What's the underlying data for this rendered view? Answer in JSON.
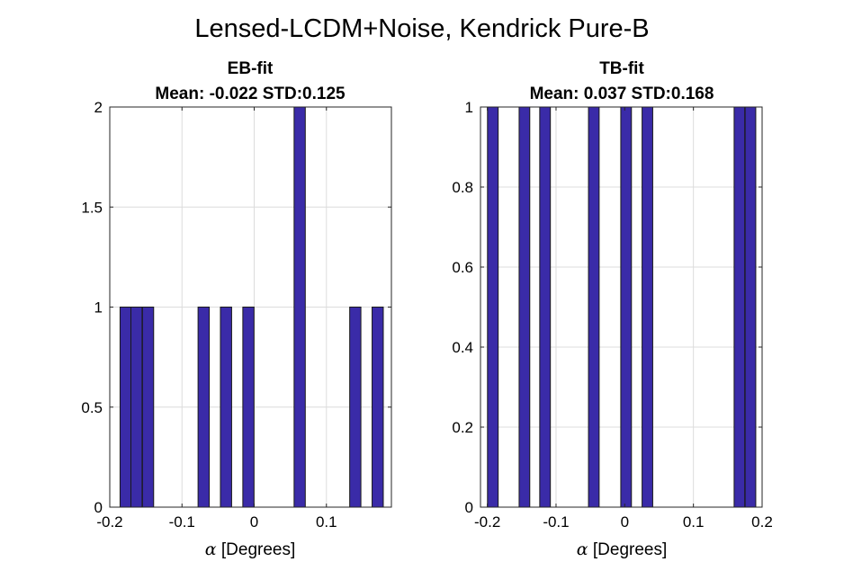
{
  "figure": {
    "title": "Lensed-LCDM+Noise, Kendrick Pure-B"
  },
  "chart_data": [
    {
      "type": "bar",
      "title": "EB-fit",
      "subtitle": "Mean: -0.022 STD:0.125",
      "xlabel_symbol": "α",
      "xlabel_text": " [Degrees]",
      "xlim": [
        -0.2,
        0.19
      ],
      "ylim": [
        0,
        2
      ],
      "grid": true,
      "bin_width": 0.0155,
      "xticks": [
        -0.2,
        -0.1,
        0,
        0.1
      ],
      "xtick_labels": [
        "-0.2",
        "-0.1",
        "0",
        "0.1"
      ],
      "yticks": [
        0,
        0.5,
        1,
        1.5,
        2
      ],
      "ytick_labels": [
        "0",
        "0.5",
        "1",
        "1.5",
        "2"
      ],
      "bins": [
        {
          "center": -0.178,
          "count": 1
        },
        {
          "center": -0.163,
          "count": 1
        },
        {
          "center": -0.147,
          "count": 1
        },
        {
          "center": -0.07,
          "count": 1
        },
        {
          "center": -0.039,
          "count": 1
        },
        {
          "center": -0.008,
          "count": 1
        },
        {
          "center": 0.063,
          "count": 2
        },
        {
          "center": 0.14,
          "count": 1
        },
        {
          "center": 0.171,
          "count": 1
        }
      ]
    },
    {
      "type": "bar",
      "title": "TB-fit",
      "subtitle": "Mean: 0.037 STD:0.168",
      "xlabel_symbol": "α",
      "xlabel_text": " [Degrees]",
      "xlim": [
        -0.21,
        0.2
      ],
      "ylim": [
        0,
        1
      ],
      "grid": true,
      "bin_width": 0.0155,
      "xticks": [
        -0.2,
        -0.1,
        0,
        0.1,
        0.2
      ],
      "xtick_labels": [
        "-0.2",
        "-0.1",
        "0",
        "0.1",
        "0.2"
      ],
      "yticks": [
        0,
        0.2,
        0.4,
        0.6,
        0.8,
        1
      ],
      "ytick_labels": [
        "0",
        "0.2",
        "0.4",
        "0.6",
        "0.8",
        "1"
      ],
      "bins": [
        {
          "center": -0.192,
          "count": 1
        },
        {
          "center": -0.146,
          "count": 1
        },
        {
          "center": -0.116,
          "count": 1
        },
        {
          "center": -0.045,
          "count": 1
        },
        {
          "center": 0.002,
          "count": 1
        },
        {
          "center": 0.033,
          "count": 1
        },
        {
          "center": 0.167,
          "count": 1
        },
        {
          "center": 0.183,
          "count": 1
        }
      ]
    }
  ]
}
